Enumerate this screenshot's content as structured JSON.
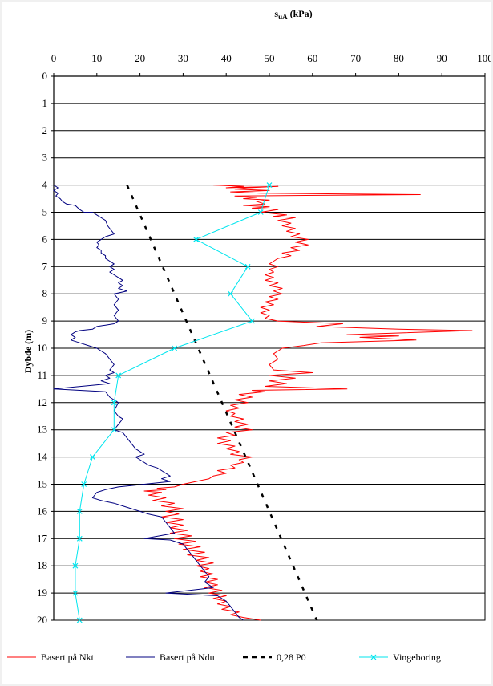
{
  "chart_data": {
    "type": "line",
    "title_main": "s",
    "title_sub": "uA",
    "title_unit": " (kPa)",
    "xlabel": "",
    "ylabel": "Dybde (m)",
    "xlim": [
      0,
      100
    ],
    "ylim": [
      0,
      20
    ],
    "y_inverted": true,
    "x_axis_position": "top",
    "x_ticks": [
      0,
      10,
      20,
      30,
      40,
      50,
      60,
      70,
      80,
      90,
      100
    ],
    "y_ticks": [
      0,
      1,
      2,
      3,
      4,
      5,
      6,
      7,
      8,
      9,
      10,
      11,
      12,
      13,
      14,
      15,
      16,
      17,
      18,
      19,
      20
    ],
    "grid": true,
    "legend_position": "bottom",
    "series": [
      {
        "name": "Basert på Nkt",
        "color": "#ff0000",
        "style": "solid",
        "marker": "none",
        "points": [
          [
            46,
            4.0
          ],
          [
            37,
            4.0
          ],
          [
            44,
            4.05
          ],
          [
            40,
            4.1
          ],
          [
            52,
            4.05
          ],
          [
            45,
            4.1
          ],
          [
            42,
            4.15
          ],
          [
            50,
            4.2
          ],
          [
            41,
            4.25
          ],
          [
            48,
            4.3
          ],
          [
            85,
            4.35
          ],
          [
            42,
            4.4
          ],
          [
            47,
            4.45
          ],
          [
            44,
            4.5
          ],
          [
            50,
            4.55
          ],
          [
            47,
            4.6
          ],
          [
            49,
            4.7
          ],
          [
            44,
            4.75
          ],
          [
            50,
            4.8
          ],
          [
            46,
            4.85
          ],
          [
            52,
            4.9
          ],
          [
            48,
            5.0
          ],
          [
            54,
            5.1
          ],
          [
            51,
            5.15
          ],
          [
            56,
            5.2
          ],
          [
            52,
            5.3
          ],
          [
            55,
            5.4
          ],
          [
            53,
            5.5
          ],
          [
            56,
            5.6
          ],
          [
            54,
            5.7
          ],
          [
            57,
            5.8
          ],
          [
            55,
            5.9
          ],
          [
            59,
            6.0
          ],
          [
            56,
            6.1
          ],
          [
            59,
            6.2
          ],
          [
            55,
            6.3
          ],
          [
            57,
            6.4
          ],
          [
            53,
            6.5
          ],
          [
            55,
            6.6
          ],
          [
            52,
            6.7
          ],
          [
            51,
            6.8
          ],
          [
            50,
            6.9
          ],
          [
            52,
            7.0
          ],
          [
            50,
            7.1
          ],
          [
            51,
            7.2
          ],
          [
            49,
            7.3
          ],
          [
            51,
            7.4
          ],
          [
            49,
            7.5
          ],
          [
            52,
            7.6
          ],
          [
            50,
            7.7
          ],
          [
            53,
            7.8
          ],
          [
            51,
            7.9
          ],
          [
            53,
            8.0
          ],
          [
            50,
            8.1
          ],
          [
            52,
            8.2
          ],
          [
            49,
            8.3
          ],
          [
            51,
            8.4
          ],
          [
            48,
            8.5
          ],
          [
            50,
            8.6
          ],
          [
            48,
            8.7
          ],
          [
            50,
            8.8
          ],
          [
            49,
            8.9
          ],
          [
            52,
            9.0
          ],
          [
            67,
            9.1
          ],
          [
            61,
            9.2
          ],
          [
            80,
            9.3
          ],
          [
            97,
            9.35
          ],
          [
            68,
            9.5
          ],
          [
            80,
            9.55
          ],
          [
            71,
            9.6
          ],
          [
            84,
            9.7
          ],
          [
            62,
            9.8
          ],
          [
            58,
            9.9
          ],
          [
            53,
            10.0
          ],
          [
            51,
            10.2
          ],
          [
            52,
            10.4
          ],
          [
            50,
            10.6
          ],
          [
            51,
            10.8
          ],
          [
            60,
            10.9
          ],
          [
            50,
            11.0
          ],
          [
            56,
            11.1
          ],
          [
            50,
            11.2
          ],
          [
            54,
            11.3
          ],
          [
            49,
            11.4
          ],
          [
            68,
            11.5
          ],
          [
            46,
            11.55
          ],
          [
            49,
            11.6
          ],
          [
            43,
            11.7
          ],
          [
            46,
            11.8
          ],
          [
            42,
            11.9
          ],
          [
            45,
            12.0
          ],
          [
            41,
            12.1
          ],
          [
            43,
            12.2
          ],
          [
            40,
            12.3
          ],
          [
            42,
            12.4
          ],
          [
            41,
            12.5
          ],
          [
            44,
            12.6
          ],
          [
            42,
            12.7
          ],
          [
            45,
            12.8
          ],
          [
            42,
            12.9
          ],
          [
            46,
            13.0
          ],
          [
            40,
            13.1
          ],
          [
            42,
            13.2
          ],
          [
            38,
            13.3
          ],
          [
            41,
            13.4
          ],
          [
            38,
            13.5
          ],
          [
            42,
            13.6
          ],
          [
            40,
            13.7
          ],
          [
            43,
            13.8
          ],
          [
            41,
            13.9
          ],
          [
            46,
            14.0
          ],
          [
            43,
            14.1
          ],
          [
            44,
            14.2
          ],
          [
            41,
            14.3
          ],
          [
            42,
            14.4
          ],
          [
            38,
            14.5
          ],
          [
            40,
            14.6
          ],
          [
            37,
            14.7
          ],
          [
            36,
            14.8
          ],
          [
            33,
            14.9
          ],
          [
            30,
            15.0
          ],
          [
            28,
            15.1
          ],
          [
            24,
            15.15
          ],
          [
            26,
            15.2
          ],
          [
            21,
            15.25
          ],
          [
            25,
            15.3
          ],
          [
            22,
            15.4
          ],
          [
            26,
            15.5
          ],
          [
            23,
            15.6
          ],
          [
            28,
            15.7
          ],
          [
            25,
            15.8
          ],
          [
            30,
            15.9
          ],
          [
            26,
            16.0
          ],
          [
            29,
            16.1
          ],
          [
            25,
            16.2
          ],
          [
            30,
            16.3
          ],
          [
            26,
            16.4
          ],
          [
            30,
            16.5
          ],
          [
            27,
            16.6
          ],
          [
            31,
            16.7
          ],
          [
            27,
            16.8
          ],
          [
            32,
            16.9
          ],
          [
            28,
            17.0
          ],
          [
            33,
            17.1
          ],
          [
            29,
            17.2
          ],
          [
            34,
            17.3
          ],
          [
            30,
            17.4
          ],
          [
            35,
            17.5
          ],
          [
            31,
            17.6
          ],
          [
            36,
            17.7
          ],
          [
            33,
            17.8
          ],
          [
            37,
            17.9
          ],
          [
            33,
            18.0
          ],
          [
            36,
            18.1
          ],
          [
            34,
            18.2
          ],
          [
            37,
            18.3
          ],
          [
            34,
            18.4
          ],
          [
            38,
            18.5
          ],
          [
            35,
            18.6
          ],
          [
            38,
            18.7
          ],
          [
            35,
            18.8
          ],
          [
            39,
            18.9
          ],
          [
            36,
            19.0
          ],
          [
            40,
            19.1
          ],
          [
            37,
            19.2
          ],
          [
            40,
            19.3
          ],
          [
            38,
            19.4
          ],
          [
            41,
            19.5
          ],
          [
            39,
            19.6
          ],
          [
            43,
            19.7
          ],
          [
            41,
            19.8
          ],
          [
            44,
            19.9
          ],
          [
            48,
            20.0
          ]
        ]
      },
      {
        "name": "Basert på Ndu",
        "color": "#000080",
        "style": "solid",
        "marker": "none",
        "points": [
          [
            0,
            4.0
          ],
          [
            1,
            4.1
          ],
          [
            0,
            4.2
          ],
          [
            1,
            4.3
          ],
          [
            0.5,
            4.4
          ],
          [
            1.5,
            4.5
          ],
          [
            2,
            4.6
          ],
          [
            3,
            4.7
          ],
          [
            5,
            4.75
          ],
          [
            6,
            4.9
          ],
          [
            7,
            5.0
          ],
          [
            9,
            5.0
          ],
          [
            10,
            5.1
          ],
          [
            11,
            5.2
          ],
          [
            12,
            5.3
          ],
          [
            12.5,
            5.5
          ],
          [
            13,
            5.6
          ],
          [
            13.5,
            5.7
          ],
          [
            14,
            5.8
          ],
          [
            12,
            5.9
          ],
          [
            11,
            6.0
          ],
          [
            10,
            6.1
          ],
          [
            10.5,
            6.2
          ],
          [
            10,
            6.3
          ],
          [
            11,
            6.4
          ],
          [
            11,
            6.5
          ],
          [
            12,
            6.6
          ],
          [
            12,
            6.7
          ],
          [
            13,
            6.8
          ],
          [
            14,
            6.9
          ],
          [
            13,
            7.0
          ],
          [
            14,
            7.1
          ],
          [
            13,
            7.2
          ],
          [
            14,
            7.3
          ],
          [
            15,
            7.4
          ],
          [
            16,
            7.5
          ],
          [
            15,
            7.6
          ],
          [
            16,
            7.7
          ],
          [
            15,
            7.8
          ],
          [
            17,
            7.9
          ],
          [
            14,
            8.0
          ],
          [
            15,
            8.2
          ],
          [
            14,
            8.4
          ],
          [
            15,
            8.6
          ],
          [
            14,
            8.8
          ],
          [
            15,
            9.0
          ],
          [
            14,
            9.1
          ],
          [
            12,
            9.15
          ],
          [
            10,
            9.2
          ],
          [
            9,
            9.3
          ],
          [
            6,
            9.35
          ],
          [
            5,
            9.4
          ],
          [
            4,
            9.5
          ],
          [
            5,
            9.6
          ],
          [
            4,
            9.7
          ],
          [
            6,
            9.8
          ],
          [
            8,
            9.9
          ],
          [
            10,
            10.0
          ],
          [
            12,
            10.2
          ],
          [
            13,
            10.4
          ],
          [
            14,
            10.6
          ],
          [
            13,
            10.8
          ],
          [
            14,
            10.9
          ],
          [
            12,
            11.0
          ],
          [
            13,
            11.1
          ],
          [
            11,
            11.2
          ],
          [
            13,
            11.3
          ],
          [
            0,
            11.5
          ],
          [
            12,
            11.6
          ],
          [
            13,
            11.8
          ],
          [
            15,
            12.0
          ],
          [
            14,
            12.3
          ],
          [
            15,
            12.5
          ],
          [
            16,
            12.6
          ],
          [
            15,
            12.8
          ],
          [
            14,
            13.0
          ],
          [
            16,
            13.1
          ],
          [
            17,
            13.3
          ],
          [
            18,
            13.5
          ],
          [
            19,
            13.7
          ],
          [
            21,
            13.9
          ],
          [
            19,
            14.0
          ],
          [
            20,
            14.1
          ],
          [
            22,
            14.3
          ],
          [
            24,
            14.4
          ],
          [
            25,
            14.5
          ],
          [
            26,
            14.6
          ],
          [
            27,
            14.7
          ],
          [
            25,
            14.8
          ],
          [
            27,
            14.9
          ],
          [
            21,
            15.0
          ],
          [
            18,
            15.05
          ],
          [
            15,
            15.1
          ],
          [
            12,
            15.2
          ],
          [
            10,
            15.3
          ],
          [
            9,
            15.5
          ],
          [
            11,
            15.6
          ],
          [
            14,
            15.7
          ],
          [
            16,
            15.8
          ],
          [
            18,
            15.9
          ],
          [
            20,
            16.0
          ],
          [
            22,
            16.1
          ],
          [
            25,
            16.2
          ],
          [
            26,
            16.4
          ],
          [
            27,
            16.6
          ],
          [
            28,
            16.8
          ],
          [
            21,
            17.0
          ],
          [
            27,
            17.05
          ],
          [
            30,
            17.2
          ],
          [
            31,
            17.4
          ],
          [
            32,
            17.6
          ],
          [
            33,
            17.8
          ],
          [
            34,
            18.0
          ],
          [
            35,
            18.2
          ],
          [
            36,
            18.4
          ],
          [
            35,
            18.6
          ],
          [
            37,
            18.8
          ],
          [
            26,
            19.0
          ],
          [
            38,
            19.1
          ],
          [
            40,
            19.3
          ],
          [
            41,
            19.5
          ],
          [
            42,
            19.7
          ],
          [
            43,
            19.9
          ],
          [
            44,
            20.0
          ]
        ]
      },
      {
        "name": "0,28 P0",
        "color": "#000000",
        "style": "dashed",
        "marker": "none",
        "points": [
          [
            17,
            4.0
          ],
          [
            61,
            20.0
          ]
        ]
      },
      {
        "name": "Vingeboring",
        "color": "#00e5ee",
        "style": "solid",
        "marker": "x",
        "points": [
          [
            50,
            4.0
          ],
          [
            48,
            5.0
          ],
          [
            33,
            6.0
          ],
          [
            45,
            7.0
          ],
          [
            41,
            8.0
          ],
          [
            46,
            9.0
          ],
          [
            28,
            10.0
          ],
          [
            15,
            11.0
          ],
          [
            14,
            12.0
          ],
          [
            14,
            13.0
          ],
          [
            9,
            14.0
          ],
          [
            7,
            15.0
          ],
          [
            6,
            16.0
          ],
          [
            6,
            17.0
          ],
          [
            5,
            18.0
          ],
          [
            5,
            19.0
          ],
          [
            6,
            20.0
          ]
        ]
      }
    ]
  }
}
